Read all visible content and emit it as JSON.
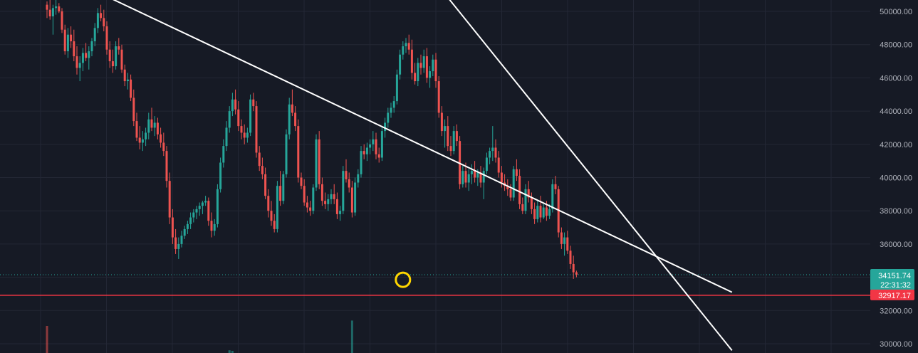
{
  "chart_data": {
    "type": "candlestick",
    "y_axis": {
      "ylim": [
        29600,
        51500
      ],
      "tick_labels": [
        "30000.00",
        "32000.00",
        "34000.00",
        "36000.00",
        "38000.00",
        "40000.00",
        "42000.00",
        "44000.00",
        "46000.00",
        "48000.00",
        "50000.00"
      ],
      "tick_values": [
        30000,
        32000,
        34000,
        36000,
        38000,
        40000,
        42000,
        44000,
        46000,
        48000,
        50000
      ]
    },
    "last_price": {
      "value": 34151.74,
      "label": "34151.74",
      "countdown": "22:31:32",
      "color": "#26a69a"
    },
    "horizontal_level": {
      "value": 32917.17,
      "label": "32917.17",
      "color": "#f23645"
    },
    "marker": {
      "type": "circle",
      "at_value": 33850,
      "color": "#ffd600"
    },
    "trend_lines_price_pairs": [
      {
        "name": "",
        "start_bar": 0,
        "start_price": 52600,
        "end_bar": 229,
        "end_price": 33100
      },
      {
        "name": "",
        "start_bar": 127,
        "start_price": 52400,
        "end_bar": 229,
        "end_price": 29600
      }
    ],
    "candles_ohlc": [
      [
        50400,
        50600,
        49600,
        50100
      ],
      [
        50100,
        50800,
        49500,
        49700
      ],
      [
        49700,
        50400,
        48600,
        50200
      ],
      [
        50200,
        50700,
        49800,
        50300
      ],
      [
        50300,
        50500,
        49900,
        50000
      ],
      [
        50000,
        50200,
        48700,
        48900
      ],
      [
        48900,
        49200,
        47400,
        47600
      ],
      [
        47600,
        49000,
        47200,
        48600
      ],
      [
        48600,
        49100,
        47800,
        48200
      ],
      [
        48200,
        48900,
        47000,
        47300
      ],
      [
        47300,
        47900,
        46200,
        46600
      ],
      [
        46600,
        47300,
        45800,
        46900
      ],
      [
        46900,
        47800,
        46400,
        47500
      ],
      [
        47500,
        48100,
        47000,
        47200
      ],
      [
        47200,
        47900,
        46500,
        47600
      ],
      [
        47600,
        48400,
        47300,
        48200
      ],
      [
        48200,
        49300,
        47900,
        49000
      ],
      [
        49000,
        50200,
        48700,
        49900
      ],
      [
        49900,
        50400,
        49400,
        49600
      ],
      [
        49600,
        50100,
        48800,
        49100
      ],
      [
        49100,
        49400,
        47400,
        47700
      ],
      [
        47700,
        48200,
        46600,
        47000
      ],
      [
        47000,
        47700,
        46300,
        46700
      ],
      [
        46700,
        48200,
        46500,
        47900
      ],
      [
        47900,
        48400,
        47400,
        47700
      ],
      [
        47700,
        48000,
        46300,
        46500
      ],
      [
        46500,
        46800,
        45500,
        45800
      ],
      [
        45800,
        46300,
        45300,
        45900
      ],
      [
        45900,
        46200,
        44600,
        44800
      ],
      [
        44800,
        45300,
        43100,
        43400
      ],
      [
        43400,
        43900,
        42200,
        42400
      ],
      [
        42400,
        43100,
        41700,
        42100
      ],
      [
        42100,
        42800,
        41600,
        42300
      ],
      [
        42300,
        43000,
        41900,
        42700
      ],
      [
        42700,
        43900,
        42300,
        43500
      ],
      [
        43500,
        44200,
        42800,
        43000
      ],
      [
        43000,
        43700,
        42500,
        43300
      ],
      [
        43300,
        43600,
        42300,
        42600
      ],
      [
        42600,
        43000,
        41800,
        42100
      ],
      [
        42100,
        42700,
        41300,
        41600
      ],
      [
        41600,
        41900,
        39400,
        39800
      ],
      [
        39800,
        40300,
        37200,
        37600
      ],
      [
        37600,
        38100,
        36000,
        36400
      ],
      [
        36400,
        36900,
        35400,
        35700
      ],
      [
        35700,
        36400,
        35100,
        36000
      ],
      [
        36000,
        36800,
        35800,
        36500
      ],
      [
        36500,
        37100,
        36300,
        36900
      ],
      [
        36900,
        37400,
        36600,
        37200
      ],
      [
        37200,
        37900,
        36900,
        37600
      ],
      [
        37600,
        38100,
        37300,
        37900
      ],
      [
        37900,
        38300,
        37500,
        38100
      ],
      [
        38100,
        38500,
        37700,
        38300
      ],
      [
        38300,
        38600,
        37800,
        38500
      ],
      [
        38500,
        38900,
        38300,
        38600
      ],
      [
        38600,
        38800,
        37100,
        37400
      ],
      [
        37400,
        37900,
        36400,
        36800
      ],
      [
        36800,
        37500,
        36500,
        37200
      ],
      [
        37200,
        39600,
        37000,
        39300
      ],
      [
        39300,
        41200,
        39100,
        40900
      ],
      [
        40900,
        42300,
        40600,
        41900
      ],
      [
        41900,
        43400,
        41600,
        43000
      ],
      [
        43000,
        44300,
        42700,
        44000
      ],
      [
        44000,
        45100,
        43700,
        44700
      ],
      [
        44700,
        45300,
        43800,
        44100
      ],
      [
        44100,
        44600,
        42800,
        43100
      ],
      [
        43100,
        43500,
        42300,
        42700
      ],
      [
        42700,
        43200,
        42000,
        42400
      ],
      [
        42400,
        43000,
        42100,
        42700
      ],
      [
        42700,
        45000,
        42500,
        44700
      ],
      [
        44700,
        45100,
        44000,
        44300
      ],
      [
        44300,
        44600,
        41200,
        41500
      ],
      [
        41500,
        41900,
        40400,
        40700
      ],
      [
        40700,
        41200,
        39900,
        40200
      ],
      [
        40200,
        40600,
        38700,
        38900
      ],
      [
        38900,
        39300,
        37600,
        38000
      ],
      [
        38000,
        38600,
        37100,
        37400
      ],
      [
        37400,
        37800,
        36700,
        36900
      ],
      [
        36900,
        39800,
        36700,
        39500
      ],
      [
        39500,
        40400,
        38300,
        38600
      ],
      [
        38600,
        40400,
        38400,
        40200
      ],
      [
        40200,
        42900,
        40000,
        42600
      ],
      [
        42600,
        44800,
        42300,
        44400
      ],
      [
        44400,
        45300,
        43700,
        43900
      ],
      [
        43900,
        44300,
        42800,
        43100
      ],
      [
        43100,
        43500,
        39700,
        40000
      ],
      [
        40000,
        40300,
        39300,
        39500
      ],
      [
        39500,
        39900,
        38300,
        38500
      ],
      [
        38500,
        38900,
        37900,
        38200
      ],
      [
        38200,
        38600,
        37700,
        38000
      ],
      [
        38000,
        39600,
        37800,
        39400
      ],
      [
        39400,
        42600,
        39200,
        42300
      ],
      [
        42300,
        42800,
        39300,
        39600
      ],
      [
        39600,
        40000,
        38300,
        38600
      ],
      [
        38600,
        39100,
        38100,
        38400
      ],
      [
        38400,
        39000,
        38000,
        38700
      ],
      [
        38700,
        39300,
        38400,
        39000
      ],
      [
        39000,
        39600,
        38400,
        38700
      ],
      [
        38700,
        39100,
        37500,
        37800
      ],
      [
        37800,
        38300,
        37400,
        38000
      ],
      [
        38000,
        40700,
        37800,
        40400
      ],
      [
        40400,
        41100,
        39700,
        39900
      ],
      [
        39900,
        40300,
        39100,
        39400
      ],
      [
        39400,
        39800,
        37600,
        37900
      ],
      [
        37900,
        40000,
        37700,
        39700
      ],
      [
        39700,
        40500,
        39400,
        40200
      ],
      [
        40200,
        41900,
        40000,
        41600
      ],
      [
        41600,
        42000,
        41100,
        41400
      ],
      [
        41400,
        42100,
        41000,
        41800
      ],
      [
        41800,
        42300,
        41400,
        42000
      ],
      [
        42000,
        42800,
        41600,
        42300
      ],
      [
        42300,
        42700,
        41100,
        41400
      ],
      [
        41400,
        41800,
        40900,
        41200
      ],
      [
        41200,
        43100,
        41000,
        42800
      ],
      [
        42800,
        43600,
        42400,
        43300
      ],
      [
        43300,
        44200,
        43000,
        43900
      ],
      [
        43900,
        44500,
        43600,
        44200
      ],
      [
        44200,
        44900,
        43900,
        44600
      ],
      [
        44600,
        46500,
        44400,
        46200
      ],
      [
        46200,
        47700,
        45900,
        47400
      ],
      [
        47400,
        48200,
        47100,
        47900
      ],
      [
        47900,
        48400,
        47500,
        48100
      ],
      [
        48100,
        48600,
        47400,
        47700
      ],
      [
        47700,
        48300,
        45900,
        46300
      ],
      [
        46300,
        46900,
        45600,
        45800
      ],
      [
        45800,
        47200,
        45500,
        46900
      ],
      [
        46900,
        47400,
        46200,
        46600
      ],
      [
        46600,
        47700,
        46300,
        47300
      ],
      [
        47300,
        47800,
        45700,
        46000
      ],
      [
        46000,
        46700,
        45400,
        46400
      ],
      [
        46400,
        47400,
        46100,
        47100
      ],
      [
        47100,
        47500,
        45400,
        45800
      ],
      [
        45800,
        46100,
        43600,
        43900
      ],
      [
        43900,
        44300,
        42500,
        42800
      ],
      [
        42800,
        43500,
        41800,
        43100
      ],
      [
        43100,
        43700,
        41600,
        41900
      ],
      [
        41900,
        42500,
        41300,
        41600
      ],
      [
        41600,
        43100,
        41400,
        42800
      ],
      [
        42800,
        43200,
        41900,
        42200
      ],
      [
        42200,
        42500,
        39300,
        39600
      ],
      [
        39600,
        40700,
        39400,
        40400
      ],
      [
        40400,
        40900,
        39400,
        39700
      ],
      [
        39700,
        40500,
        39200,
        40200
      ],
      [
        40200,
        40800,
        39600,
        40400
      ],
      [
        40400,
        41000,
        39700,
        40000
      ],
      [
        40000,
        40500,
        39500,
        40300
      ],
      [
        40300,
        40700,
        39400,
        39700
      ],
      [
        39700,
        40600,
        38700,
        40400
      ],
      [
        40400,
        41500,
        40200,
        41200
      ],
      [
        41200,
        41800,
        40800,
        41600
      ],
      [
        41600,
        43100,
        41000,
        41800
      ],
      [
        41800,
        42300,
        40900,
        41200
      ],
      [
        41200,
        41600,
        40000,
        40300
      ],
      [
        40300,
        40700,
        39400,
        39700
      ],
      [
        39700,
        40200,
        39200,
        39500
      ],
      [
        39500,
        39900,
        38900,
        39300
      ],
      [
        39300,
        39600,
        38600,
        38800
      ],
      [
        38800,
        40700,
        38600,
        40500
      ],
      [
        40500,
        41100,
        39800,
        40100
      ],
      [
        40100,
        40500,
        38100,
        38400
      ],
      [
        38400,
        38800,
        37800,
        38000
      ],
      [
        38000,
        39600,
        37800,
        39300
      ],
      [
        39300,
        39800,
        38500,
        38800
      ],
      [
        38800,
        39100,
        37800,
        38100
      ],
      [
        38100,
        38500,
        37200,
        37500
      ],
      [
        37500,
        38600,
        37300,
        38300
      ],
      [
        38300,
        38900,
        37300,
        37600
      ],
      [
        37600,
        38400,
        37500,
        38200
      ],
      [
        38200,
        38600,
        37400,
        37700
      ],
      [
        37700,
        38400,
        37500,
        38100
      ],
      [
        38100,
        39900,
        37900,
        39600
      ],
      [
        39600,
        40100,
        39000,
        39300
      ],
      [
        39300,
        39500,
        36400,
        36700
      ],
      [
        36700,
        37000,
        35700,
        36000
      ],
      [
        36000,
        36700,
        35300,
        36400
      ],
      [
        36400,
        36800,
        35400,
        35600
      ],
      [
        35600,
        35900,
        34500,
        34800
      ],
      [
        34800,
        35300,
        33900,
        34300
      ],
      [
        34300,
        34400,
        34000,
        34151.74
      ]
    ],
    "volume_bars_ratio": [
      {
        "index": 0,
        "relative": 1.0,
        "direction": "down"
      },
      {
        "index": 61,
        "relative": 0.1,
        "direction": "up"
      },
      {
        "index": 62,
        "relative": 0.08,
        "direction": "up"
      },
      {
        "index": 102,
        "relative": 1.2,
        "direction": "up"
      }
    ]
  }
}
